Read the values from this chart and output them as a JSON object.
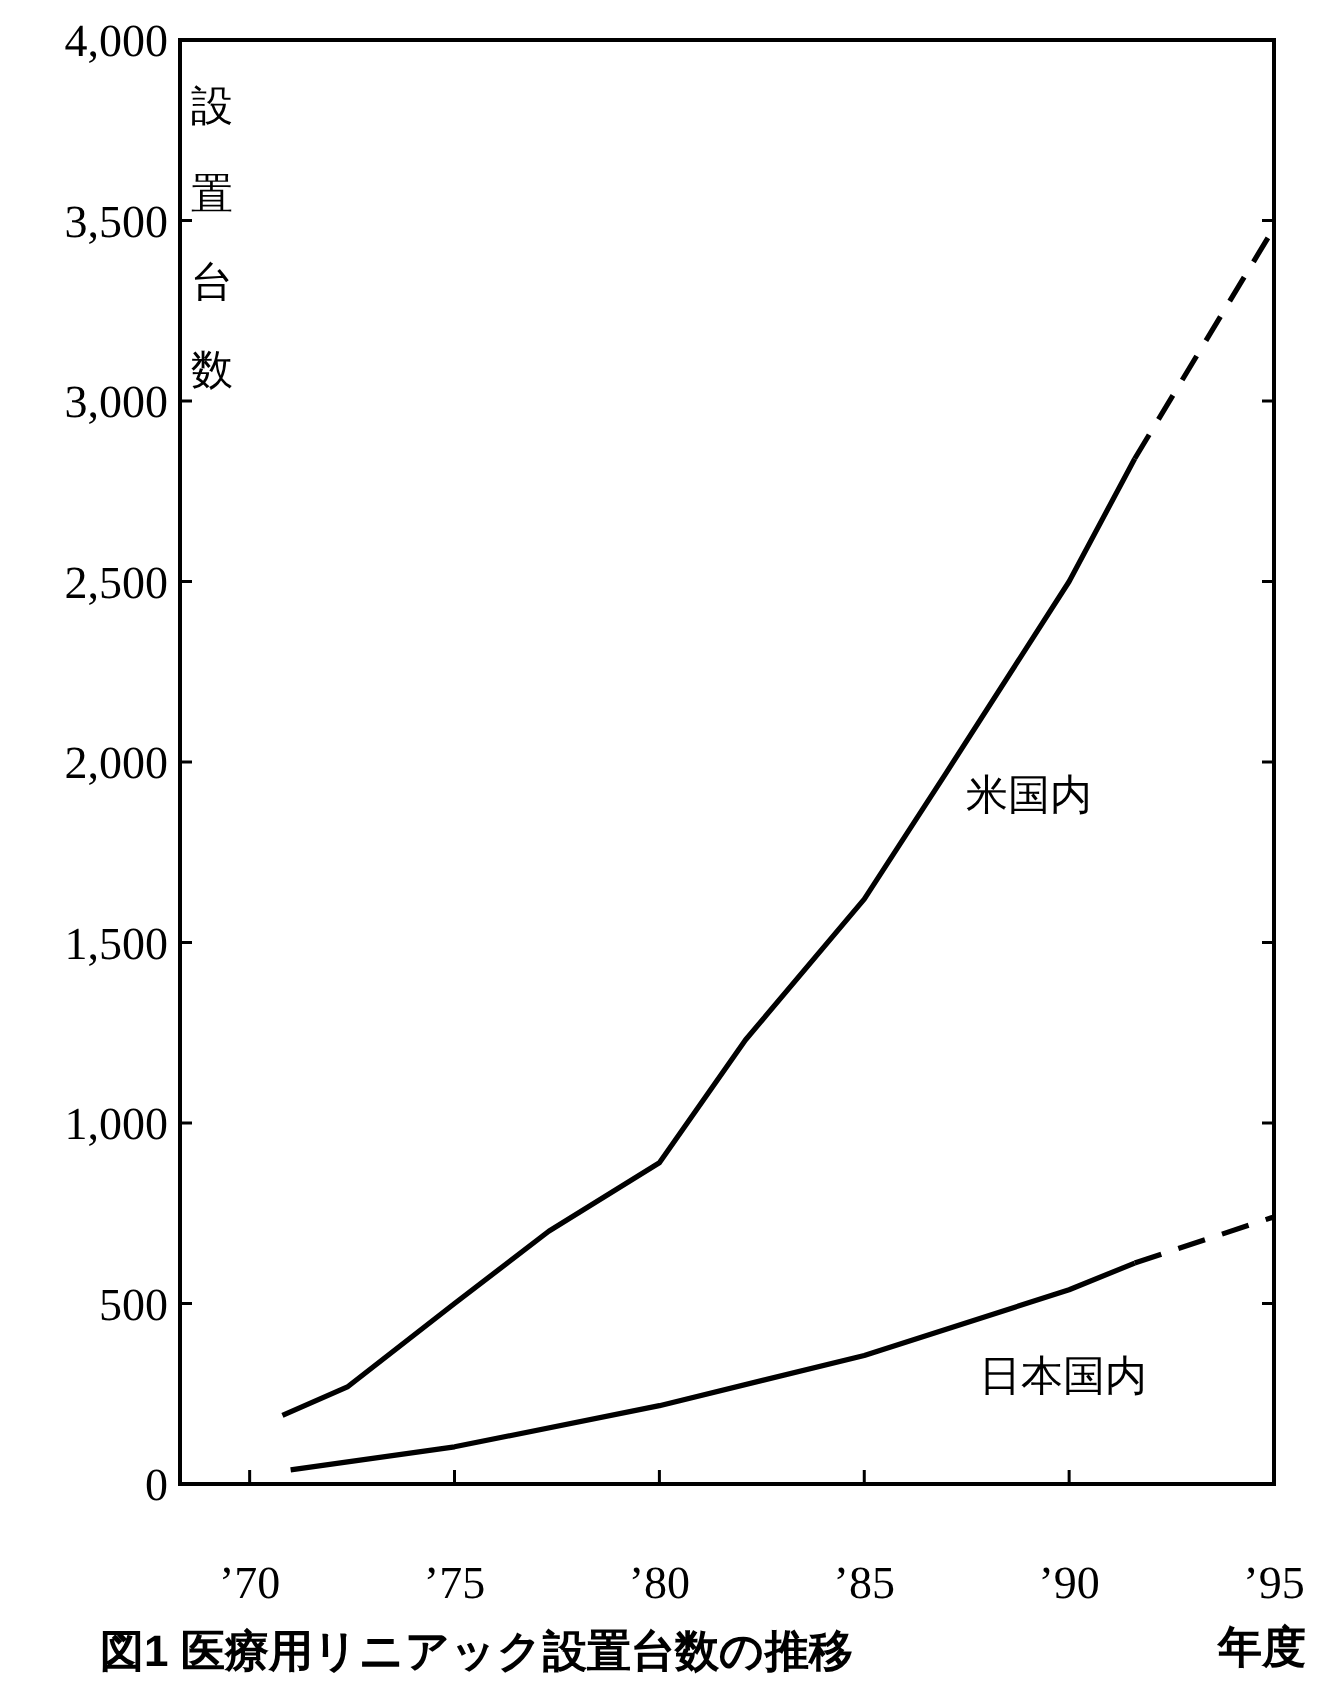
{
  "chart_data": {
    "type": "line",
    "title": "図1 医療用リニアック設置台数の推移",
    "xlabel": "年度",
    "ylabel": "設置台数",
    "xlim": [
      1968.3,
      1995
    ],
    "ylim": [
      0,
      4000
    ],
    "xticks": [
      {
        "value": 1970,
        "label": "’70"
      },
      {
        "value": 1975,
        "label": "’75"
      },
      {
        "value": 1980,
        "label": "’80"
      },
      {
        "value": 1985,
        "label": "’85"
      },
      {
        "value": 1990,
        "label": "’90"
      },
      {
        "value": 1995,
        "label": "’95"
      }
    ],
    "yticks": [
      0,
      {
        "value": 500,
        "label": "500"
      },
      {
        "value": 1000,
        "label": "1,000"
      },
      {
        "value": 1500,
        "label": "1,500"
      },
      {
        "value": 2000,
        "label": "2,000"
      },
      {
        "value": 2500,
        "label": "2,500"
      },
      {
        "value": 3000,
        "label": "3,000"
      },
      {
        "value": 3500,
        "label": "3,500"
      },
      {
        "value": 4000,
        "label": "4,000"
      }
    ],
    "series": [
      {
        "name": "米国内",
        "color": "#000000",
        "line_style": "solid",
        "x": [
          1970.8,
          1972.4,
          1975,
          1977.3,
          1980,
          1982.1,
          1985,
          1987,
          1990,
          1991.6
        ],
        "values": [
          190,
          270,
          500,
          700,
          890,
          1230,
          1620,
          1970,
          2500,
          2840
        ]
      },
      {
        "color": "#000000",
        "line_style": "dashed",
        "x": [
          1991.6,
          1995
        ],
        "values": [
          2840,
          3480
        ]
      },
      {
        "name": "日本国内",
        "color": "#000000",
        "line_style": "solid",
        "x": [
          1971,
          1975,
          1980,
          1985,
          1990,
          1991.6
        ],
        "values": [
          39,
          103,
          217,
          356,
          538,
          612
        ]
      },
      {
        "color": "#000000",
        "line_style": "dashed",
        "x": [
          1991.6,
          1995
        ],
        "values": [
          612,
          740
        ]
      }
    ]
  }
}
